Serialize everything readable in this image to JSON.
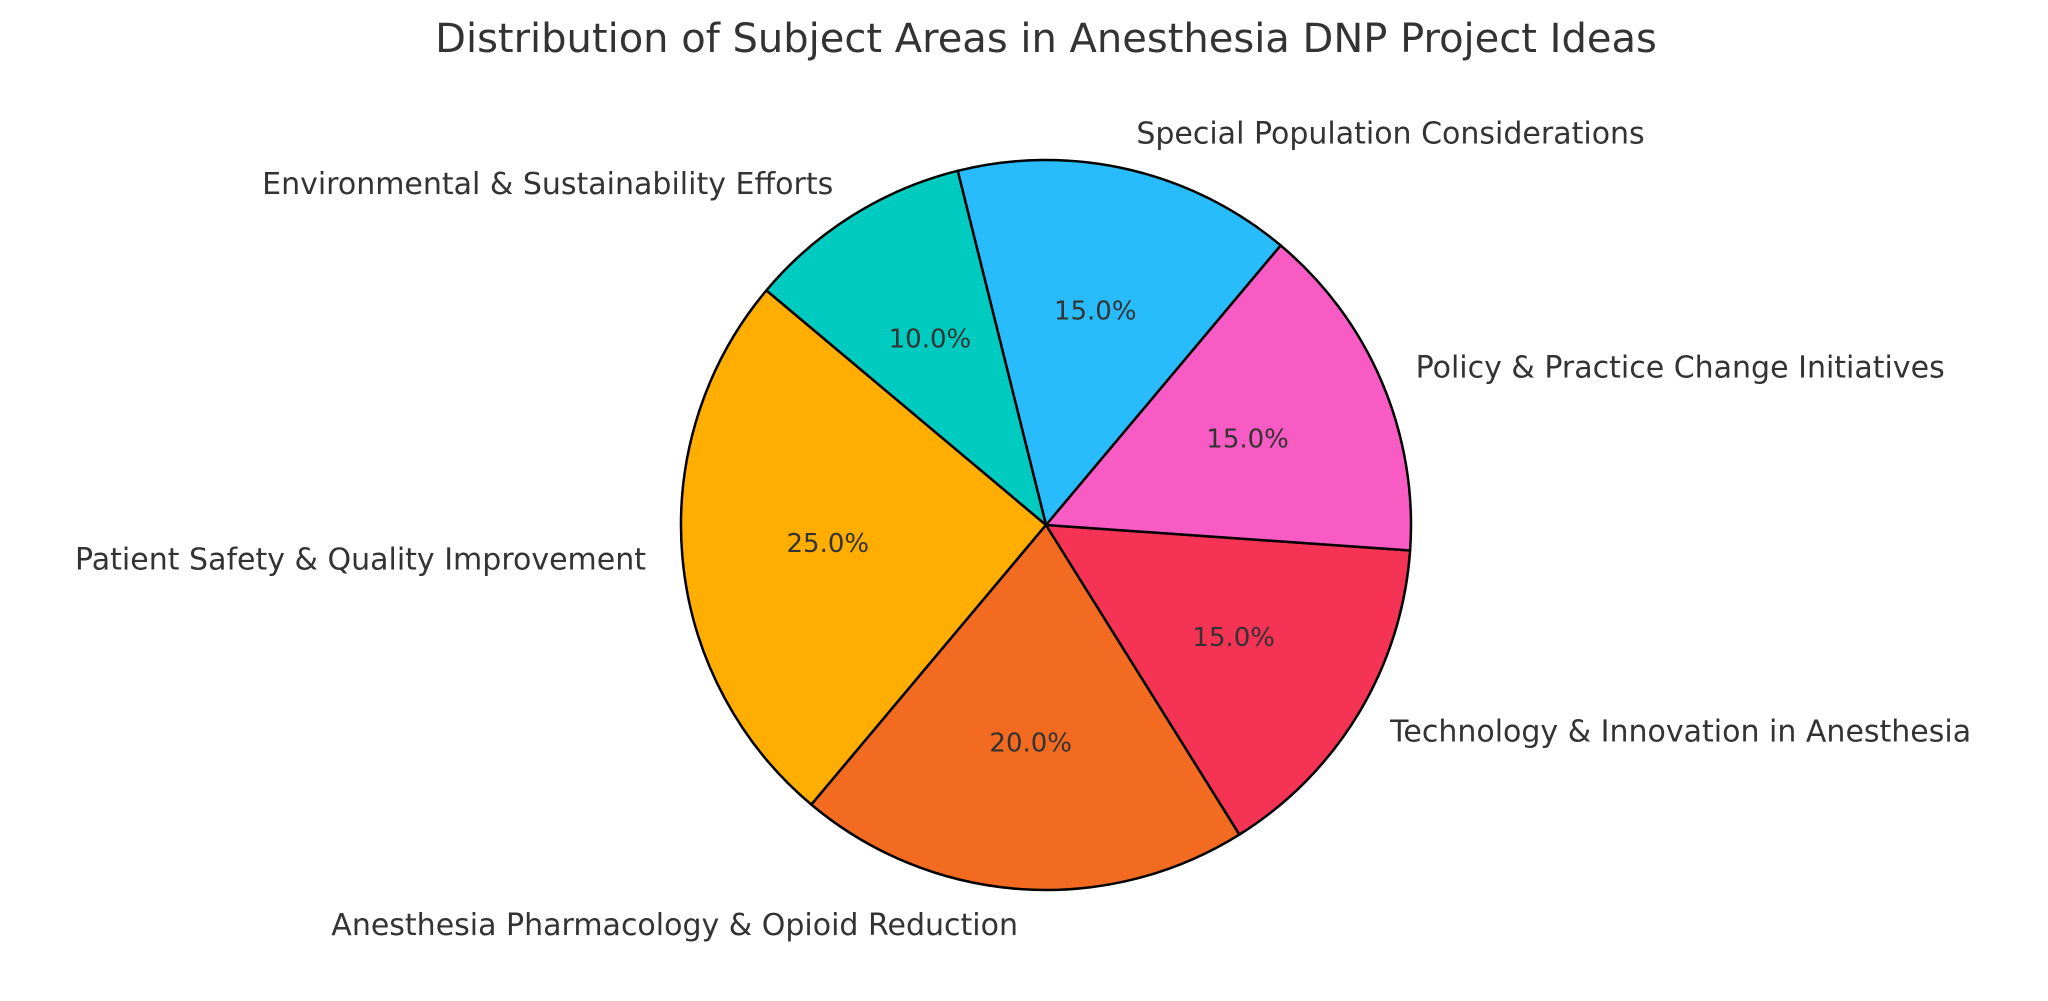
{
  "chart_data": {
    "type": "pie",
    "title": "Distribution of Subject Areas in Anesthesia DNP Project Ideas",
    "start_angle_deg": 140,
    "direction": "counterclockwise",
    "slices": [
      {
        "label": "Patient Safety & Quality Improvement",
        "value": 25,
        "pct_label": "25.0%",
        "color": "#FFAE00"
      },
      {
        "label": "Anesthesia Pharmacology & Opioid Reduction",
        "value": 20,
        "pct_label": "20.0%",
        "color": "#F26B21"
      },
      {
        "label": "Technology & Innovation in Anesthesia",
        "value": 15,
        "pct_label": "15.0%",
        "color": "#F53355"
      },
      {
        "label": "Policy & Practice Change Initiatives",
        "value": 15,
        "pct_label": "15.0%",
        "color": "#F95BC4"
      },
      {
        "label": "Special Population Considerations",
        "value": 15,
        "pct_label": "15.0%",
        "color": "#29BCFD"
      },
      {
        "label": "Environmental & Sustainability Efforts",
        "value": 10,
        "pct_label": "10.0%",
        "color": "#00CBC1"
      }
    ],
    "edge_color": "#000000"
  }
}
